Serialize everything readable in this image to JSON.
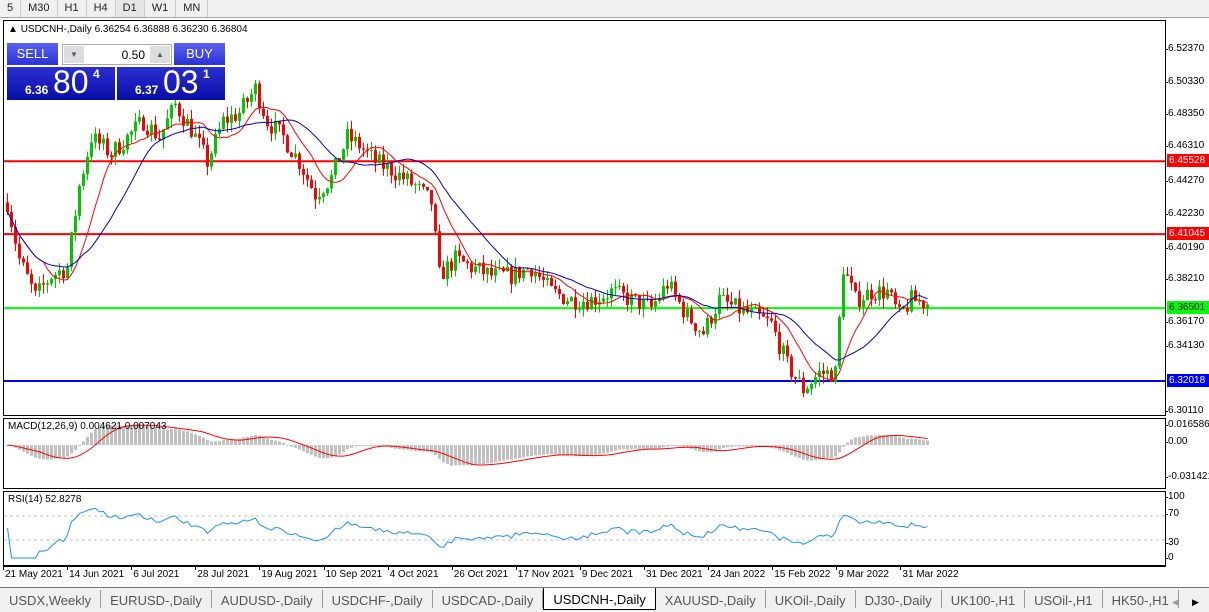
{
  "timeframes": [
    "5",
    "M30",
    "H1",
    "H4",
    "D1",
    "W1",
    "MN"
  ],
  "active_timeframe": "D1",
  "chart": {
    "symbol_info": "USDCNH-,Daily",
    "ohlc": "6.36254 6.36888 6.36230 6.36804"
  },
  "trade_panel": {
    "sell_label": "SELL",
    "buy_label": "BUY",
    "lot": "0.50",
    "sell_big": "6.36",
    "sell_pips": "80",
    "sell_frac": "4",
    "buy_big": "6.37",
    "buy_pips": "03",
    "buy_frac": "1"
  },
  "price_axis": [
    "6.52370",
    "6.50330",
    "6.48350",
    "6.46310",
    "6.44270",
    "6.42230",
    "6.40190",
    "6.38210",
    "6.36170",
    "6.34130",
    "6.30110"
  ],
  "levels": [
    {
      "value": "6.45528",
      "color": "#ff0000"
    },
    {
      "value": "6.41045",
      "color": "#ff0000"
    },
    {
      "value": "6.36501",
      "color": "#00ff00"
    },
    {
      "value": "6.32018",
      "color": "#0000ff"
    }
  ],
  "macd": {
    "label": "MACD(12,26,9) 0.004621 0.007043",
    "axis": [
      "0.016586",
      "0.00",
      "-0.031421"
    ]
  },
  "rsi": {
    "label": "RSI(14) 52.8278",
    "axis": [
      "100",
      "70",
      "30",
      "0"
    ]
  },
  "date_axis": [
    "21 May 2021",
    "14 Jun 2021",
    "6 Jul 2021",
    "28 Jul 2021",
    "19 Aug 2021",
    "10 Sep 2021",
    "4 Oct 2021",
    "26 Oct 2021",
    "17 Nov 2021",
    "9 Dec 2021",
    "31 Dec 2021",
    "24 Jan 2022",
    "15 Feb 2022",
    "9 Mar 2022",
    "31 Mar 2022"
  ],
  "tabs": [
    "USDX,Weekly",
    "EURUSD-,Daily",
    "AUDUSD-,Daily",
    "USDCHF-,Daily",
    "USDCAD-,Daily",
    "USDCNH-,Daily",
    "XAUUSD-,Daily",
    "UKOil-,Daily",
    "DJ30-,Daily",
    "UK100-,H1",
    "USOil-,H1",
    "HK50-,H1"
  ],
  "active_tab": "USDCNH-,Daily",
  "colors": {
    "bull": "#00c800",
    "bear": "#ff0000",
    "ma_fast": "#ff0000",
    "ma_slow": "#0000c0",
    "macd_hist": "#c0c0c0",
    "rsi": "#1e90ff"
  },
  "chart_data": {
    "type": "candlestick",
    "approx_closes": [
      [
        "2021-05-21",
        6.43
      ],
      [
        "2021-05-26",
        6.395
      ],
      [
        "2021-06-01",
        6.372
      ],
      [
        "2021-06-07",
        6.385
      ],
      [
        "2021-06-11",
        6.39
      ],
      [
        "2021-06-16",
        6.44
      ],
      [
        "2021-06-21",
        6.47
      ],
      [
        "2021-06-28",
        6.46
      ],
      [
        "2021-07-02",
        6.47
      ],
      [
        "2021-07-08",
        6.48
      ],
      [
        "2021-07-14",
        6.47
      ],
      [
        "2021-07-20",
        6.49
      ],
      [
        "2021-07-26",
        6.475
      ],
      [
        "2021-07-30",
        6.455
      ],
      [
        "2021-08-05",
        6.48
      ],
      [
        "2021-08-11",
        6.485
      ],
      [
        "2021-08-17",
        6.5
      ],
      [
        "2021-08-20",
        6.48
      ],
      [
        "2021-08-26",
        6.47
      ],
      [
        "2021-09-01",
        6.455
      ],
      [
        "2021-09-07",
        6.435
      ],
      [
        "2021-09-13",
        6.445
      ],
      [
        "2021-09-17",
        6.47
      ],
      [
        "2021-09-22",
        6.465
      ],
      [
        "2021-09-28",
        6.455
      ],
      [
        "2021-10-04",
        6.45
      ],
      [
        "2021-10-12",
        6.44
      ],
      [
        "2021-10-18",
        6.43
      ],
      [
        "2021-10-20",
        6.385
      ],
      [
        "2021-10-26",
        6.395
      ],
      [
        "2021-11-01",
        6.39
      ],
      [
        "2021-11-08",
        6.385
      ],
      [
        "2021-11-15",
        6.385
      ],
      [
        "2021-11-22",
        6.39
      ],
      [
        "2021-11-29",
        6.375
      ],
      [
        "2021-12-06",
        6.37
      ],
      [
        "2021-12-13",
        6.37
      ],
      [
        "2021-12-20",
        6.375
      ],
      [
        "2021-12-27",
        6.37
      ],
      [
        "2022-01-03",
        6.365
      ],
      [
        "2022-01-07",
        6.38
      ],
      [
        "2022-01-14",
        6.36
      ],
      [
        "2022-01-20",
        6.35
      ],
      [
        "2022-01-26",
        6.37
      ],
      [
        "2022-02-01",
        6.365
      ],
      [
        "2022-02-08",
        6.36
      ],
      [
        "2022-02-14",
        6.355
      ],
      [
        "2022-02-18",
        6.33
      ],
      [
        "2022-02-24",
        6.315
      ],
      [
        "2022-03-02",
        6.325
      ],
      [
        "2022-03-08",
        6.325
      ],
      [
        "2022-03-10",
        6.39
      ],
      [
        "2022-03-15",
        6.37
      ],
      [
        "2022-03-21",
        6.375
      ],
      [
        "2022-03-25",
        6.375
      ],
      [
        "2022-03-30",
        6.36
      ],
      [
        "2022-04-04",
        6.37
      ],
      [
        "2022-04-08",
        6.368
      ]
    ],
    "ylim": [
      6.3011,
      6.5237
    ],
    "macd_ylim": [
      -0.031421,
      0.016586
    ],
    "rsi_ylim": [
      0,
      100
    ]
  }
}
